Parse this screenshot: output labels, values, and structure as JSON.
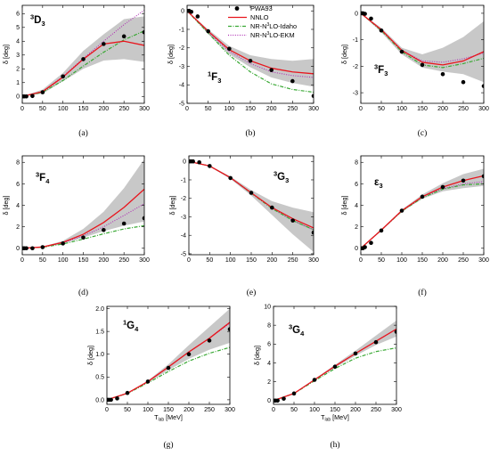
{
  "legend": {
    "entries": [
      {
        "label": "PWA93",
        "kind": "point",
        "color": "#000000"
      },
      {
        "label": "NNLO",
        "kind": "solid",
        "color": "#e8151d"
      },
      {
        "label_pre": "NR-N",
        "label_sup": "3",
        "label_post": "LO-Idaho",
        "kind": "dashdot",
        "color": "#3aa935"
      },
      {
        "label_pre": "NR-N",
        "label_sup": "3",
        "label_post": "LO-EKM",
        "kind": "dotted",
        "color": "#b02fb4"
      }
    ]
  },
  "axis_text": {
    "ylabel": "δ [deg]",
    "xlabel_pre": "T",
    "xlabel_sub": "lab",
    "xlabel_post": " [MeV]"
  },
  "chart_data": [
    {
      "type": "line",
      "panel": "(a)",
      "title_sup": "3",
      "title_main": "D",
      "title_sub": "3",
      "xlim": [
        0,
        300
      ],
      "ylim": [
        -0.5,
        6.6
      ],
      "xticks": [
        0,
        50,
        100,
        150,
        200,
        250,
        300
      ],
      "yticks": [
        0,
        1,
        2,
        3,
        4,
        5,
        6
      ],
      "show_xlabel": false,
      "pwa_x": [
        1,
        5,
        10,
        25,
        50,
        100,
        150,
        200,
        250,
        300
      ],
      "pwa_y": [
        0,
        0,
        0,
        0.03,
        0.3,
        1.45,
        2.7,
        3.8,
        4.35,
        4.65
      ],
      "band_x": [
        0,
        50,
        100,
        150,
        200,
        250,
        300
      ],
      "band_lo": [
        0,
        0.2,
        1.1,
        2.0,
        2.6,
        2.7,
        2.5
      ],
      "band_hi": [
        0,
        0.5,
        1.7,
        3.3,
        4.5,
        5.6,
        5.8
      ],
      "nnlo": [
        0,
        0.35,
        1.4,
        2.7,
        3.8,
        4.0,
        3.7
      ],
      "idaho": [
        0,
        0.3,
        1.15,
        2.2,
        3.2,
        4.1,
        4.75
      ],
      "ekm": [
        0,
        0.35,
        1.45,
        2.75,
        4.0,
        5.2,
        6.25
      ]
    },
    {
      "type": "line",
      "panel": "(b)",
      "title_sup": "1",
      "title_main": "F",
      "title_sub": "3",
      "xlim": [
        0,
        300
      ],
      "ylim": [
        -5,
        0.3
      ],
      "xticks": [
        0,
        50,
        100,
        150,
        200,
        250,
        300
      ],
      "yticks": [
        0,
        -1,
        -2,
        -3,
        -4,
        -5
      ],
      "show_xlabel": false,
      "pwa_x": [
        1,
        5,
        10,
        25,
        50,
        100,
        150,
        200,
        250,
        300
      ],
      "pwa_y": [
        0,
        0,
        -0.05,
        -0.3,
        -1.1,
        -2.05,
        -2.7,
        -3.2,
        -3.8,
        -4.6
      ],
      "band_x": [
        0,
        50,
        100,
        150,
        200,
        250,
        300
      ],
      "band_lo": [
        0,
        -1.25,
        -2.35,
        -3.05,
        -3.6,
        -3.9,
        -4.1
      ],
      "band_hi": [
        0,
        -1.0,
        -1.9,
        -2.4,
        -2.6,
        -2.7,
        -2.6
      ],
      "nnlo": [
        0,
        -1.1,
        -2.1,
        -2.7,
        -3.1,
        -3.3,
        -3.4
      ],
      "idaho": [
        0,
        -1.2,
        -2.4,
        -3.3,
        -3.95,
        -4.25,
        -4.4
      ],
      "ekm": [
        0,
        -1.15,
        -2.2,
        -2.85,
        -3.3,
        -3.5,
        -3.6
      ]
    },
    {
      "type": "line",
      "panel": "(c)",
      "title_sup": "3",
      "title_main": "F",
      "title_sub": "3",
      "xlim": [
        0,
        300
      ],
      "ylim": [
        -3.4,
        0.3
      ],
      "xticks": [
        0,
        50,
        100,
        150,
        200,
        250,
        300
      ],
      "yticks": [
        0,
        -1,
        -2,
        -3
      ],
      "show_xlabel": false,
      "pwa_x": [
        1,
        5,
        10,
        25,
        50,
        100,
        150,
        200,
        250,
        300
      ],
      "pwa_y": [
        0,
        0,
        -0.02,
        -0.2,
        -0.65,
        -1.45,
        -1.95,
        -2.3,
        -2.6,
        -2.75
      ],
      "band_x": [
        0,
        50,
        100,
        150,
        200,
        250,
        300
      ],
      "band_lo": [
        0,
        -0.72,
        -1.55,
        -2.05,
        -2.2,
        -2.3,
        -2.6
      ],
      "band_hi": [
        0,
        -0.55,
        -1.3,
        -1.55,
        -1.3,
        -0.9,
        -0.3
      ],
      "nnlo": [
        0,
        -0.62,
        -1.4,
        -1.85,
        -1.95,
        -1.8,
        -1.45
      ],
      "idaho": [
        0,
        -0.65,
        -1.45,
        -1.95,
        -2.05,
        -1.9,
        -1.7
      ],
      "ekm": [
        0,
        -0.62,
        -1.4,
        -1.8,
        -1.85,
        -1.72,
        -1.5
      ]
    },
    {
      "type": "line",
      "panel": "(d)",
      "title_sup": "3",
      "title_main": "F",
      "title_sub": "4",
      "xlim": [
        0,
        300
      ],
      "ylim": [
        -0.6,
        8.6
      ],
      "xticks": [
        0,
        50,
        100,
        150,
        200,
        250,
        300
      ],
      "yticks": [
        0,
        2,
        4,
        6,
        8
      ],
      "show_xlabel": false,
      "pwa_x": [
        1,
        5,
        10,
        25,
        50,
        100,
        150,
        200,
        250,
        300
      ],
      "pwa_y": [
        0,
        0,
        0,
        0,
        0.1,
        0.45,
        1.0,
        1.7,
        2.3,
        2.8
      ],
      "band_x": [
        0,
        50,
        100,
        150,
        200,
        250,
        300
      ],
      "band_lo": [
        0,
        0.1,
        0.45,
        1.0,
        1.6,
        2.1,
        2.5
      ],
      "band_hi": [
        0,
        0.15,
        0.7,
        1.8,
        3.4,
        5.6,
        8.3
      ],
      "nnlo": [
        0,
        0.12,
        0.55,
        1.3,
        2.4,
        3.8,
        5.5
      ],
      "idaho": [
        0,
        0.1,
        0.4,
        0.85,
        1.35,
        1.8,
        2.1
      ],
      "ekm": [
        0,
        0.12,
        0.5,
        1.15,
        2.0,
        3.05,
        4.15
      ]
    },
    {
      "type": "line",
      "panel": "(e)",
      "title_sup": "3",
      "title_main": "G",
      "title_sub": "3",
      "xlim": [
        0,
        300
      ],
      "ylim": [
        -5.05,
        0.3
      ],
      "xticks": [
        0,
        50,
        100,
        150,
        200,
        250,
        300
      ],
      "yticks": [
        0,
        -1,
        -2,
        -3,
        -4,
        -5
      ],
      "show_xlabel": false,
      "pwa_x": [
        1,
        5,
        10,
        25,
        50,
        100,
        150,
        200,
        250,
        300
      ],
      "pwa_y": [
        0,
        0,
        0,
        -0.05,
        -0.25,
        -0.9,
        -1.7,
        -2.5,
        -3.2,
        -3.85
      ],
      "band_x": [
        0,
        50,
        100,
        150,
        200,
        250,
        300
      ],
      "band_lo": [
        0,
        -0.28,
        -0.95,
        -1.85,
        -2.9,
        -3.95,
        -4.9
      ],
      "band_hi": [
        0,
        -0.23,
        -0.82,
        -1.55,
        -2.15,
        -2.5,
        -2.75
      ],
      "nnlo": [
        0,
        -0.25,
        -0.88,
        -1.7,
        -2.5,
        -3.1,
        -3.6
      ],
      "idaho": [
        0,
        -0.25,
        -0.88,
        -1.72,
        -2.55,
        -3.2,
        -3.7
      ],
      "ekm": [
        0,
        -0.25,
        -0.89,
        -1.72,
        -2.55,
        -3.2,
        -3.7
      ]
    },
    {
      "type": "line",
      "panel": "(f)",
      "title_sup": "",
      "title_main": "ε",
      "title_sub": "3",
      "xlim": [
        0,
        300
      ],
      "ylim": [
        -0.6,
        8.6
      ],
      "xticks": [
        0,
        50,
        100,
        150,
        200,
        250,
        300
      ],
      "yticks": [
        0,
        2,
        4,
        6,
        8
      ],
      "show_xlabel": false,
      "pwa_x": [
        1,
        5,
        10,
        25,
        50,
        100,
        150,
        200,
        250,
        300
      ],
      "pwa_y": [
        0,
        0,
        0.1,
        0.5,
        1.65,
        3.5,
        4.8,
        5.7,
        6.3,
        6.7
      ],
      "band_x": [
        0,
        50,
        100,
        150,
        200,
        250,
        300
      ],
      "band_lo": [
        0,
        1.6,
        3.4,
        4.6,
        5.3,
        5.6,
        5.8
      ],
      "band_hi": [
        0,
        1.75,
        3.6,
        5.0,
        6.05,
        6.9,
        7.4
      ],
      "nnlo": [
        0,
        1.7,
        3.5,
        4.8,
        5.7,
        6.3,
        6.75
      ],
      "idaho": [
        0,
        1.7,
        3.45,
        4.7,
        5.5,
        5.9,
        6.0
      ],
      "ekm": [
        0,
        1.7,
        3.5,
        4.75,
        5.55,
        6.0,
        6.2
      ]
    },
    {
      "type": "line",
      "panel": "(g)",
      "title_sup": "1",
      "title_main": "G",
      "title_sub": "4",
      "xlim": [
        0,
        300
      ],
      "ylim": [
        -0.1,
        2.05
      ],
      "xticks": [
        0,
        50,
        100,
        150,
        200,
        250,
        300
      ],
      "yticks": [
        0,
        0.5,
        1.0,
        1.5,
        2.0
      ],
      "ytick_labels": [
        "0.0",
        "0.5",
        "1.0",
        "1.5",
        "2.0"
      ],
      "show_xlabel": true,
      "pwa_x": [
        1,
        5,
        10,
        25,
        50,
        100,
        150,
        200,
        250,
        300
      ],
      "pwa_y": [
        0,
        0,
        0,
        0.03,
        0.15,
        0.4,
        0.7,
        1.0,
        1.3,
        1.55
      ],
      "band_x": [
        0,
        50,
        100,
        150,
        200,
        250,
        300
      ],
      "band_lo": [
        0,
        0.14,
        0.38,
        0.65,
        0.9,
        1.1,
        1.25
      ],
      "band_hi": [
        0,
        0.15,
        0.42,
        0.78,
        1.2,
        1.6,
        2.0
      ],
      "nnlo": [
        0,
        0.145,
        0.4,
        0.72,
        1.05,
        1.35,
        1.7
      ],
      "idaho": [
        0,
        0.14,
        0.37,
        0.62,
        0.85,
        1.02,
        1.15
      ],
      "ekm": [
        0,
        0.145,
        0.4,
        0.72,
        1.05,
        1.35,
        1.68
      ]
    },
    {
      "type": "line",
      "panel": "(h)",
      "title_sup": "3",
      "title_main": "G",
      "title_sub": "4",
      "xlim": [
        0,
        300
      ],
      "ylim": [
        -0.4,
        10
      ],
      "xticks": [
        0,
        50,
        100,
        150,
        200,
        250,
        300
      ],
      "yticks": [
        0,
        2,
        4,
        6,
        8,
        10
      ],
      "show_xlabel": true,
      "pwa_x": [
        1,
        5,
        10,
        25,
        50,
        100,
        150,
        200,
        250,
        300
      ],
      "pwa_y": [
        0,
        0,
        0,
        0.2,
        0.75,
        2.2,
        3.6,
        5.0,
        6.2,
        7.3
      ],
      "band_x": [
        0,
        50,
        100,
        150,
        200,
        250,
        300
      ],
      "band_lo": [
        0,
        0.73,
        2.15,
        3.5,
        4.75,
        5.9,
        6.8
      ],
      "band_hi": [
        0,
        0.8,
        2.3,
        3.8,
        5.3,
        6.9,
        8.5
      ],
      "nnlo": [
        0,
        0.76,
        2.2,
        3.65,
        5.0,
        6.3,
        7.6
      ],
      "idaho": [
        0,
        0.75,
        2.1,
        3.4,
        4.5,
        5.2,
        5.6
      ],
      "ekm": [
        0,
        0.76,
        2.2,
        3.65,
        5.0,
        6.3,
        7.6
      ]
    }
  ]
}
